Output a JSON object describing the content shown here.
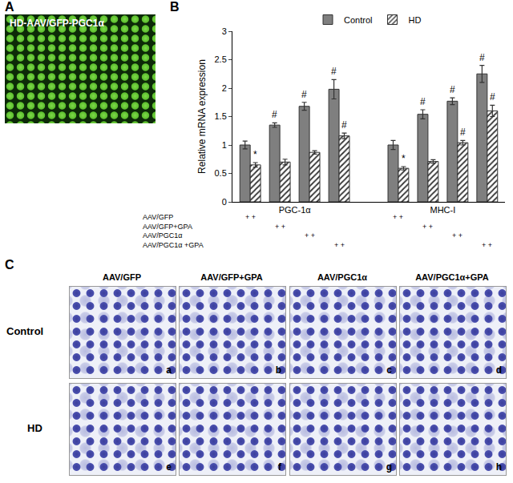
{
  "chart_data": {
    "type": "bar",
    "panel": "B",
    "ylabel": "Relative mRNA expression",
    "categories": [
      "PGC-1α",
      "MHC-I"
    ],
    "conditions": [
      "AAV/GFP",
      "AAV/GFP+GPA",
      "AAV/PGC1α",
      "AAV/PGC1α +GPA"
    ],
    "condition_mark": "+ +",
    "series": [
      {
        "name": "Control",
        "color": "#7f7f7f",
        "values": [
          [
            1.0,
            1.35,
            1.68,
            1.98
          ],
          [
            1.0,
            1.54,
            1.77,
            2.25
          ]
        ],
        "errors": [
          [
            0.07,
            0.04,
            0.07,
            0.17
          ],
          [
            0.08,
            0.08,
            0.06,
            0.15
          ]
        ],
        "marks": [
          [
            null,
            "#",
            "#",
            "#"
          ],
          [
            null,
            "#",
            "#",
            "#"
          ]
        ]
      },
      {
        "name": "HD",
        "color": "#ffffff",
        "marker": "hatched",
        "values": [
          [
            0.65,
            0.7,
            0.87,
            1.16
          ],
          [
            0.59,
            0.71,
            1.04,
            1.6
          ]
        ],
        "errors": [
          [
            0.04,
            0.05,
            0.03,
            0.05
          ],
          [
            0.03,
            0.03,
            0.04,
            0.1
          ]
        ],
        "marks": [
          [
            "*",
            null,
            null,
            "#"
          ],
          [
            "*",
            null,
            "#",
            "#"
          ]
        ]
      }
    ],
    "ylim": [
      0,
      3
    ],
    "yticks": [
      0,
      0.5,
      1,
      1.5,
      2,
      2.5,
      3
    ],
    "grid": false,
    "legend": "top"
  },
  "panels": {
    "A": {
      "label": "A",
      "caption": "HD-AAV/GFP-PGC1α"
    },
    "C": {
      "label": "C",
      "columns": [
        "AAV/GFP",
        "AAV/GFP+GPA",
        "AAV/PGC1α",
        "AAV/PGC1α+GPA"
      ],
      "rows": [
        "Control",
        "HD"
      ],
      "letters": [
        [
          "a",
          "b",
          "c",
          "d"
        ],
        [
          "e",
          "f",
          "g",
          "h"
        ]
      ]
    }
  }
}
